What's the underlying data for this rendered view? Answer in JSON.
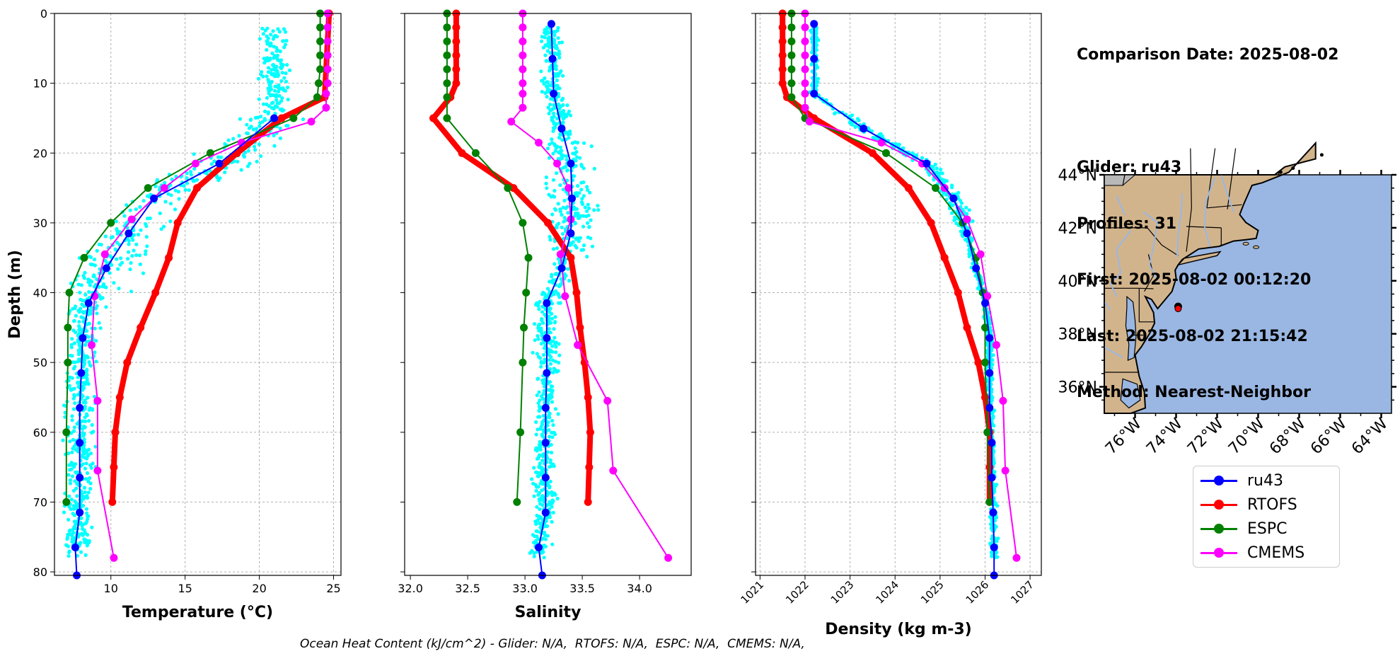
{
  "info": {
    "lines": [
      "Comparison Date: 2025-08-02",
      "",
      "Glider: ru43",
      "Profiles: 31",
      "First: 2025-08-02 00:12:20",
      "Last: 2025-08-02 21:15:42",
      "Method: Nearest-Neighbor"
    ]
  },
  "footer": "Ocean Heat Content (kJ/cm^2) - Glider: N/A,  RTOFS: N/A,  ESPC: N/A,  CMEMS: N/A,",
  "colors": {
    "ru43": "#0000ff",
    "RTOFS": "#ff0000",
    "ESPC": "#008000",
    "CMEMS": "#ff00ff",
    "scatter": "#00ffff",
    "land": "#d2b48c",
    "ocean": "#9ab7e3"
  },
  "legend": [
    "ru43",
    "RTOFS",
    "ESPC",
    "CMEMS"
  ],
  "chart_data": [
    {
      "type": "line",
      "xlabel": "Temperature (°C)",
      "ylabel": "Depth (m)",
      "xlim": [
        6.2,
        25.5
      ],
      "ylim": [
        80.5,
        0
      ],
      "xticks": [
        10,
        15,
        20,
        25
      ],
      "yticks": [
        0,
        10,
        20,
        30,
        40,
        50,
        60,
        70,
        80
      ],
      "grid": true,
      "series": [
        {
          "name": "ru43",
          "depth": [
            15,
            21.5,
            26.5,
            31.5,
            36.5,
            41.5,
            46.5,
            51.5,
            56.5,
            61.5,
            66.5,
            71.5,
            76.5,
            80.5
          ],
          "values": [
            21,
            17.3,
            12.9,
            11.2,
            9.7,
            8.5,
            8.1,
            8.0,
            7.9,
            7.9,
            7.9,
            7.9,
            7.6,
            7.7
          ]
        },
        {
          "name": "RTOFS",
          "depth": [
            0,
            12,
            15,
            20,
            25,
            30,
            35,
            40,
            45,
            50,
            55,
            60,
            65,
            70
          ],
          "values": [
            24.7,
            24.4,
            21.5,
            18.5,
            15.8,
            14.5,
            13.9,
            13.0,
            12.0,
            11.1,
            10.6,
            10.3,
            10.2,
            10.1
          ]
        },
        {
          "name": "ESPC",
          "depth": [
            0,
            2,
            4,
            6,
            8,
            10,
            12,
            15,
            20,
            25,
            30,
            35,
            40,
            45,
            50,
            60,
            70
          ],
          "values": [
            24.1,
            24.1,
            24.1,
            24.1,
            24.1,
            24.0,
            23.9,
            22.3,
            16.7,
            12.5,
            10.0,
            8.2,
            7.2,
            7.1,
            7.1,
            7.0,
            7.0
          ]
        },
        {
          "name": "CMEMS",
          "depth": [
            0,
            2,
            4,
            6,
            8,
            10,
            11.5,
            13.5,
            15.5,
            18.5,
            21.5,
            25,
            29.5,
            34.5,
            40.5,
            47.5,
            55.5,
            65.5,
            78
          ],
          "values": [
            24.6,
            24.6,
            24.6,
            24.6,
            24.6,
            24.6,
            24.5,
            24.5,
            23.5,
            18.8,
            15.7,
            13.6,
            11.4,
            9.6,
            8.9,
            8.7,
            9.1,
            9.1,
            10.2
          ]
        }
      ]
    },
    {
      "type": "line",
      "xlabel": "Salinity",
      "xlim": [
        31.95,
        34.45
      ],
      "ylim": [
        80.5,
        0
      ],
      "xticks": [
        32.0,
        32.5,
        33.0,
        33.5,
        34.0
      ],
      "grid": false,
      "series": [
        {
          "name": "ru43",
          "depth": [
            1.5,
            6.5,
            11.5,
            16.5,
            21.5,
            26.5,
            31.5,
            36.5,
            41.5,
            46.5,
            51.5,
            56.5,
            61.5,
            66.5,
            71.5,
            76.5,
            80.5
          ],
          "values": [
            33.23,
            33.24,
            33.25,
            33.32,
            33.4,
            33.41,
            33.4,
            33.32,
            33.19,
            33.19,
            33.19,
            33.18,
            33.18,
            33.18,
            33.18,
            33.12,
            33.15
          ]
        },
        {
          "name": "RTOFS",
          "depth": [
            0,
            2,
            4,
            6,
            8,
            10,
            12,
            15,
            20,
            25,
            30,
            35,
            40,
            45,
            50,
            55,
            60,
            65,
            70
          ],
          "values": [
            32.4,
            32.4,
            32.4,
            32.4,
            32.4,
            32.4,
            32.35,
            32.2,
            32.45,
            32.9,
            33.2,
            33.4,
            33.45,
            33.48,
            33.52,
            33.55,
            33.57,
            33.56,
            33.55
          ]
        },
        {
          "name": "ESPC",
          "depth": [
            0,
            2,
            4,
            6,
            8,
            10,
            12,
            15,
            20,
            25,
            30,
            35,
            40,
            45,
            50,
            60,
            70
          ],
          "values": [
            32.32,
            32.32,
            32.32,
            32.32,
            32.32,
            32.32,
            32.32,
            32.32,
            32.57,
            32.85,
            32.98,
            33.03,
            33.01,
            32.99,
            32.98,
            32.96,
            32.93
          ]
        },
        {
          "name": "CMEMS",
          "depth": [
            0,
            2,
            4,
            6,
            8,
            10,
            11.5,
            13.5,
            15.5,
            18.5,
            21.5,
            25,
            29.5,
            34.5,
            40.5,
            47.5,
            55.5,
            65.5,
            78
          ],
          "values": [
            32.98,
            32.98,
            32.98,
            32.98,
            32.98,
            32.98,
            32.98,
            32.98,
            32.88,
            33.12,
            33.28,
            33.38,
            33.4,
            33.31,
            33.35,
            33.46,
            33.72,
            33.77,
            34.25
          ]
        }
      ]
    },
    {
      "type": "line",
      "xlabel": "Density (kg m-3)",
      "xlim": [
        1020.9,
        1027.25
      ],
      "ylim": [
        80.5,
        0
      ],
      "xticks": [
        1021,
        1022,
        1023,
        1024,
        1025,
        1026,
        1027
      ],
      "grid": true,
      "series": [
        {
          "name": "ru43",
          "depth": [
            1.5,
            6.5,
            11.5,
            16.5,
            21.5,
            26.5,
            31.5,
            36.5,
            41.5,
            46.5,
            51.5,
            56.5,
            61.5,
            66.5,
            71.5,
            76.5,
            80.5
          ],
          "values": [
            1022.2,
            1022.2,
            1022.2,
            1023.3,
            1024.7,
            1025.3,
            1025.6,
            1025.8,
            1026.0,
            1026.1,
            1026.1,
            1026.1,
            1026.15,
            1026.15,
            1026.18,
            1026.2,
            1026.2
          ]
        },
        {
          "name": "RTOFS",
          "depth": [
            0,
            2,
            4,
            6,
            8,
            10,
            12,
            15,
            20,
            25,
            30,
            35,
            40,
            45,
            50,
            55,
            60,
            65,
            70
          ],
          "values": [
            1021.5,
            1021.5,
            1021.5,
            1021.5,
            1021.5,
            1021.5,
            1021.6,
            1022.2,
            1023.5,
            1024.3,
            1024.8,
            1025.1,
            1025.4,
            1025.6,
            1025.85,
            1026.0,
            1026.1,
            1026.1,
            1026.1
          ]
        },
        {
          "name": "ESPC",
          "depth": [
            0,
            2,
            4,
            6,
            8,
            10,
            12,
            15,
            20,
            25,
            30,
            35,
            40,
            45,
            50,
            60,
            70
          ],
          "values": [
            1021.7,
            1021.7,
            1021.7,
            1021.7,
            1021.7,
            1021.7,
            1021.7,
            1022.0,
            1023.8,
            1024.9,
            1025.5,
            1025.8,
            1025.95,
            1026.0,
            1026.0,
            1026.05,
            1026.1
          ]
        },
        {
          "name": "CMEMS",
          "depth": [
            0,
            2,
            4,
            6,
            8,
            10,
            11.5,
            13.5,
            15.5,
            18.5,
            21.5,
            25,
            29.5,
            34.5,
            40.5,
            47.5,
            55.5,
            65.5,
            78
          ],
          "values": [
            1022.0,
            1022.0,
            1022.0,
            1022.0,
            1022.0,
            1022.0,
            1022.0,
            1022.0,
            1022.1,
            1023.7,
            1024.6,
            1025.1,
            1025.6,
            1025.9,
            1026.05,
            1026.25,
            1026.4,
            1026.45,
            1026.7
          ]
        }
      ]
    },
    {
      "type": "map",
      "lon_range": [
        -77.5,
        -63.5
      ],
      "lat_range": [
        35,
        44
      ],
      "lon_ticks": [
        "76°W",
        "74°W",
        "72°W",
        "70°W",
        "68°W",
        "66°W",
        "64°W"
      ],
      "lat_ticks": [
        "44°N",
        "42°N",
        "40°N",
        "38°N",
        "36°N"
      ],
      "glider_position": {
        "lon": -73.9,
        "lat": 38.95
      }
    }
  ]
}
